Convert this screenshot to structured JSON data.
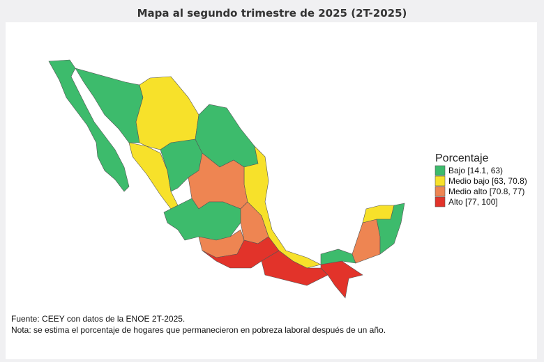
{
  "title": "Mapa al segundo trimestre de 2025 (2T-2025)",
  "legend": {
    "title": "Porcentaje",
    "items": [
      {
        "label": "Bajo [14.1, 63)",
        "color": "#3dbb6c"
      },
      {
        "label": "Medio bajo [63, 70.8)",
        "color": "#f7e12a"
      },
      {
        "label": "Medio alto [70.8, 77)",
        "color": "#ee8552"
      },
      {
        "label": "Alto [77, 100]",
        "color": "#e2332a"
      }
    ]
  },
  "source": "Fuente: CEEY con datos de la ENOE 2T-2025.",
  "note": "Nota: se estima el porcentaje de hogares que permanecieron en pobreza laboral después de un año."
}
